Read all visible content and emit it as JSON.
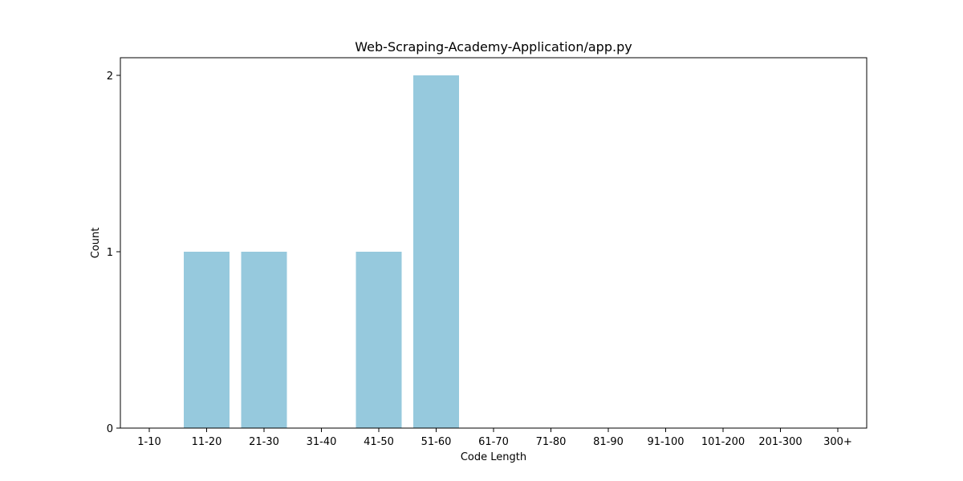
{
  "chart_data": {
    "type": "bar",
    "title": "Web-Scraping-Academy-Application/app.py",
    "xlabel": "Code Length",
    "ylabel": "Count",
    "categories": [
      "1-10",
      "11-20",
      "21-30",
      "31-40",
      "41-50",
      "51-60",
      "61-70",
      "71-80",
      "81-90",
      "91-100",
      "101-200",
      "201-300",
      "300+"
    ],
    "values": [
      0,
      1,
      1,
      0,
      1,
      2,
      0,
      0,
      0,
      0,
      0,
      0,
      0
    ],
    "ylim": [
      0,
      2.1
    ],
    "yticks": [
      0,
      1,
      2
    ],
    "bar_color": "#96c9dd",
    "grid": false,
    "legend": "none"
  }
}
